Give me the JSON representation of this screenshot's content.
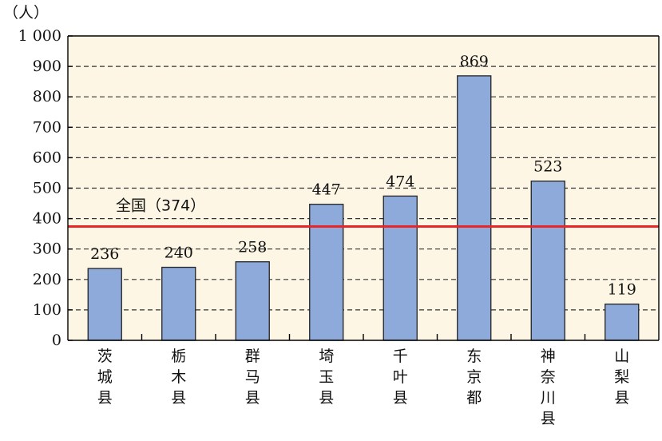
{
  "chart_data": {
    "type": "bar",
    "unit_label": "（人）",
    "categories": [
      "茨城县",
      "栃木县",
      "群马县",
      "埼玉县",
      "千叶县",
      "东京都",
      "神奈川县",
      "山梨县"
    ],
    "values": [
      236,
      240,
      258,
      447,
      474,
      869,
      523,
      119
    ],
    "y_ticks": [
      0,
      100,
      200,
      300,
      400,
      500,
      600,
      700,
      800,
      900,
      1000
    ],
    "y_tick_labels": [
      "0",
      "100",
      "200",
      "300",
      "400",
      "500",
      "600",
      "700",
      "800",
      "900",
      "1 000"
    ],
    "ylim": [
      0,
      1000
    ],
    "grid": "dashed-horizontal",
    "reference_line": {
      "label": "全国（374）",
      "value": 374
    },
    "colors": {
      "plot_background": "#fdf6e4",
      "bar_fill": "#8eaadb",
      "bar_stroke": "#222222",
      "reference_line": "#e8262a",
      "grid": "#333333"
    }
  }
}
